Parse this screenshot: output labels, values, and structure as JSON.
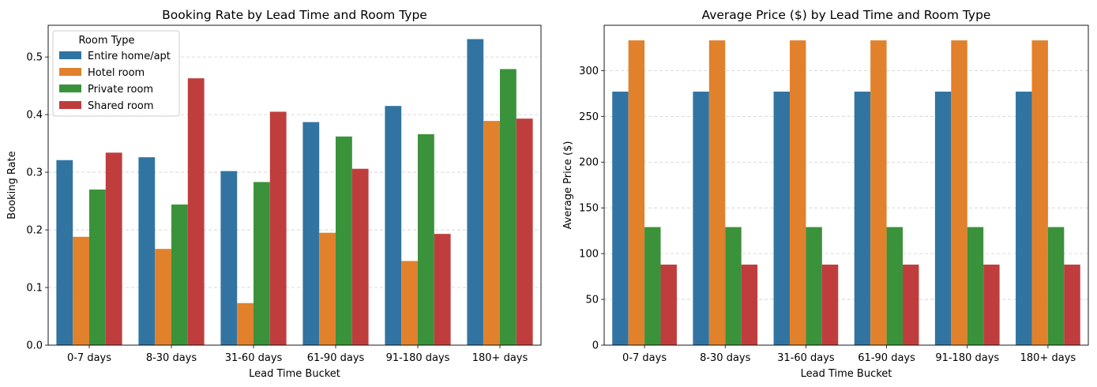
{
  "chart_data": [
    {
      "type": "bar",
      "title": "Booking Rate by Lead Time and Room Type",
      "xlabel": "Lead Time Bucket",
      "ylabel": "Booking Rate",
      "ylim": [
        0,
        0.555
      ],
      "yticks": [
        "0.0",
        "0.1",
        "0.2",
        "0.3",
        "0.4",
        "0.5"
      ],
      "grid": "horizontal-dashed",
      "legend": {
        "title": "Room Type",
        "placement": "top-left"
      },
      "categories": [
        "0-7 days",
        "8-30 days",
        "31-60 days",
        "61-90 days",
        "91-180 days",
        "180+ days"
      ],
      "series": [
        {
          "name": "Entire home/apt",
          "color": "#3274a1",
          "values": [
            0.321,
            0.326,
            0.302,
            0.387,
            0.415,
            0.531
          ]
        },
        {
          "name": "Hotel room",
          "color": "#e1812c",
          "values": [
            0.188,
            0.167,
            0.073,
            0.195,
            0.146,
            0.389
          ]
        },
        {
          "name": "Private room",
          "color": "#3a923a",
          "values": [
            0.27,
            0.244,
            0.283,
            0.362,
            0.366,
            0.479
          ]
        },
        {
          "name": "Shared room",
          "color": "#c03d3e",
          "values": [
            0.334,
            0.463,
            0.405,
            0.306,
            0.193,
            0.393
          ]
        }
      ]
    },
    {
      "type": "bar",
      "title": "Average Price ($) by Lead Time and Room Type",
      "xlabel": "Lead Time Bucket",
      "ylabel": "Average Price ($)",
      "ylim": [
        0,
        349.5
      ],
      "yticks": [
        "0",
        "50",
        "100",
        "150",
        "200",
        "250",
        "300"
      ],
      "grid": "horizontal-dashed",
      "categories": [
        "0-7 days",
        "8-30 days",
        "31-60 days",
        "61-90 days",
        "91-180 days",
        "180+ days"
      ],
      "series": [
        {
          "color": "#3274a1",
          "values": [
            277,
            277,
            277,
            277,
            277,
            277
          ]
        },
        {
          "color": "#e1812c",
          "values": [
            333,
            333,
            333,
            333,
            333,
            333
          ]
        },
        {
          "color": "#3a923a",
          "values": [
            129,
            129,
            129,
            129,
            129,
            129
          ]
        },
        {
          "color": "#c03d3e",
          "values": [
            88,
            88,
            88,
            88,
            88,
            88
          ]
        }
      ]
    }
  ]
}
